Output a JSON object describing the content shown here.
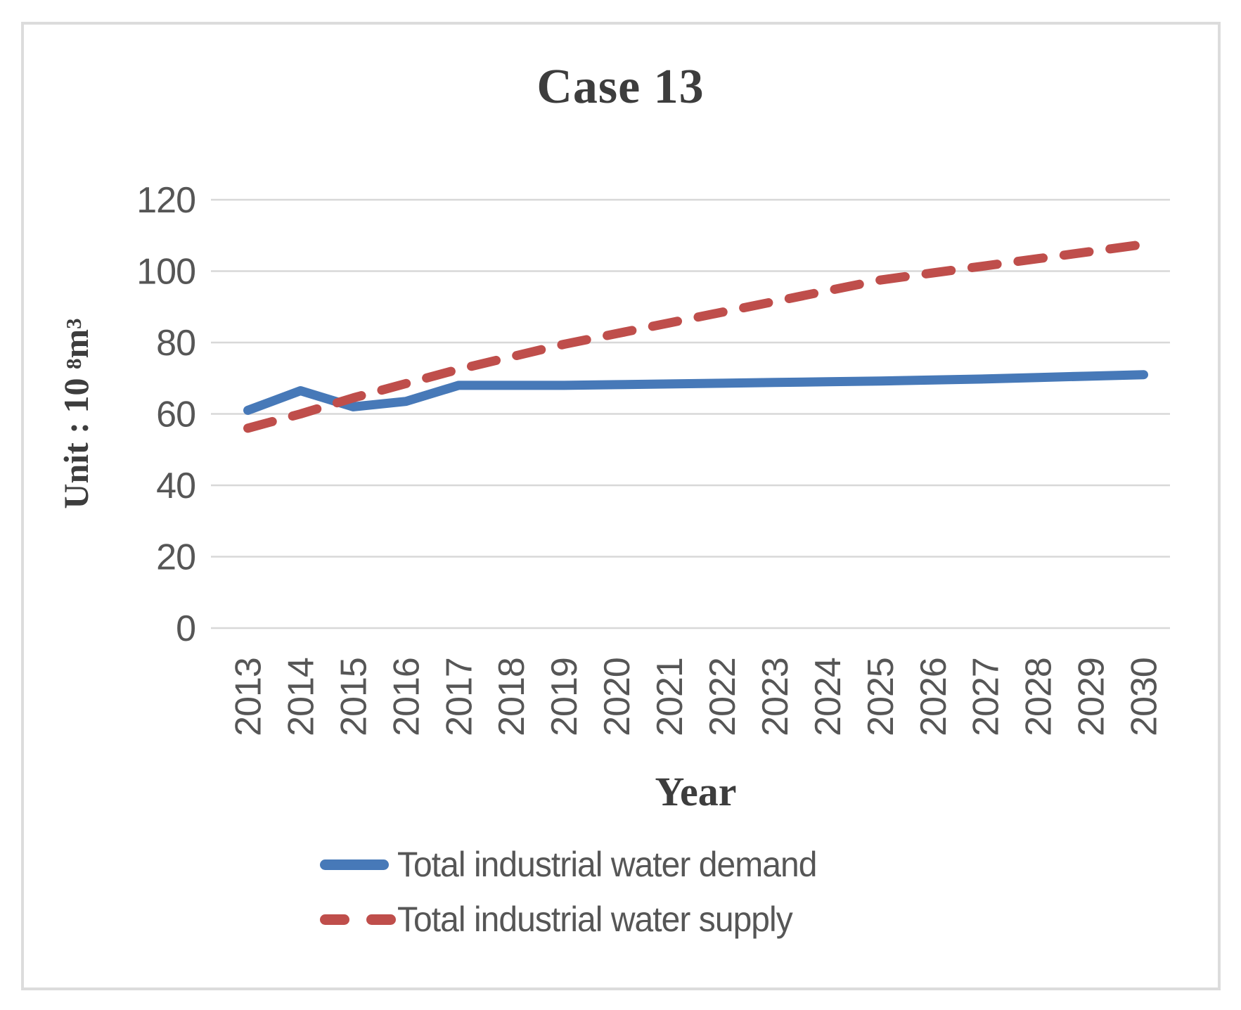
{
  "title": "Case 13",
  "frame": {
    "border_color": "#dcdcdc",
    "background": "#ffffff"
  },
  "y_axis": {
    "title_prefix": "Unit : 10 ",
    "title_sup": "8",
    "title_base": "m",
    "title_sup2": "3",
    "ticks": [
      120,
      100,
      80,
      60,
      40,
      20,
      0
    ]
  },
  "x_axis": {
    "title": "Year"
  },
  "colors": {
    "demand_line": "#4779b8",
    "supply_line": "#bf4e4b",
    "gridline": "#d8d8d8",
    "tick_text": "#565656",
    "title_text": "#3d3d3d"
  },
  "chart_data": {
    "type": "line",
    "title": "Case 13",
    "xlabel": "Year",
    "ylabel": "Unit : 10⁸m³",
    "ylim": [
      0,
      120
    ],
    "ytick_step": 20,
    "grid": true,
    "legend_position": "bottom",
    "categories": [
      "2013",
      "2014",
      "2015",
      "2016",
      "2017",
      "2018",
      "2019",
      "2020",
      "2021",
      "2022",
      "2023",
      "2024",
      "2025",
      "2026",
      "2027",
      "2028",
      "2029",
      "2030"
    ],
    "series": [
      {
        "name": "Total industrial water demand",
        "color": "#4779b8",
        "dash": "solid",
        "values": [
          61,
          66.5,
          62,
          63.5,
          68,
          68,
          68,
          68.2,
          68.4,
          68.6,
          68.8,
          69,
          69.2,
          69.5,
          69.8,
          70.2,
          70.6,
          71
        ]
      },
      {
        "name": "Total industrial water supply",
        "color": "#bf4e4b",
        "dash": "dashed",
        "values": [
          56,
          60,
          64.5,
          68.5,
          72.5,
          76,
          79.5,
          82.5,
          85.5,
          88.5,
          91.5,
          94.5,
          97.5,
          99.5,
          101.5,
          103.5,
          105.5,
          107.5
        ]
      }
    ]
  }
}
